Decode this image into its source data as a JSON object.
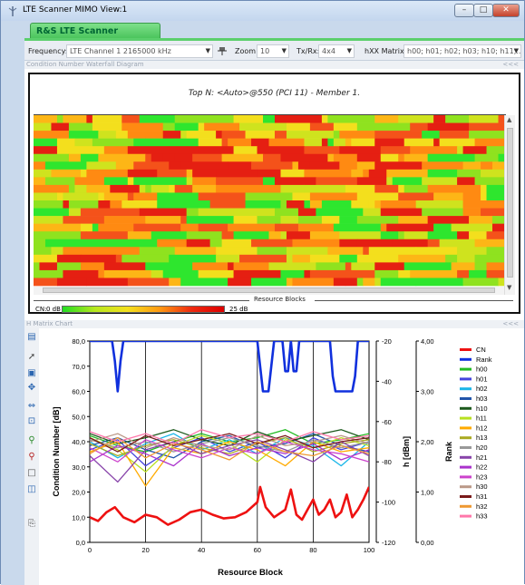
{
  "window": {
    "title": "LTE Scanner MIMO View:1"
  },
  "tab": {
    "label": "R&S LTE Scanner (TSME)..."
  },
  "toolbar": {
    "frequency_label": "Frequency:",
    "frequency_value": "LTE Channel 1 2165000 kHz",
    "zoom_label": "Zoom:",
    "zoom_value": "10",
    "txrx_label": "Tx/Rx:",
    "txrx_value": "4x4",
    "hxx_label": "hXX Matrix:",
    "hxx_value": "h00; h01; h02; h03; h10; h11;..."
  },
  "waterfall": {
    "header": "Condition Number Waterfall Diagram",
    "collapse": "<<<",
    "title": "Top N: <Auto>@550 (PCI 11) - Member 1.",
    "xaxis_label": "Resource Blocks",
    "cn_label": "CN:",
    "cn_min": "0 dB",
    "cn_max": "25 dB"
  },
  "hmatrix": {
    "header": "H Matrix Chart",
    "collapse": "<<<"
  },
  "colors": {
    "accent_green": "#4fcf63",
    "cn": "#ee1111",
    "rank": "#1030dd"
  },
  "chart_data": {
    "type": "line",
    "xlabel": "Resource Block",
    "ylabel_left": "Condition Number [dB]",
    "ylabel_h": "h [dBm]",
    "ylabel_rank": "Rank",
    "x_ticks": [
      "0",
      "20",
      "40",
      "60",
      "80",
      "100"
    ],
    "y_left_ticks": [
      "0,0",
      "10,0",
      "20,0",
      "30,0",
      "40,0",
      "50,0",
      "60,0",
      "70,0",
      "80,0"
    ],
    "y_h_ticks": [
      "-120",
      "-100",
      "-80",
      "-60",
      "-40",
      "-20"
    ],
    "y_rank_ticks": [
      "0,00",
      "1,00",
      "2,00",
      "3,00",
      "4,00"
    ],
    "xlim": [
      0,
      100
    ],
    "ylim_left": [
      0,
      80
    ],
    "ylim_h": [
      -120,
      -20
    ],
    "ylim_rank": [
      0,
      4
    ],
    "legend_position": "right",
    "series": [
      {
        "name": "CN",
        "color": "#ee1111",
        "axis": "cn",
        "x": [
          0,
          3,
          6,
          9,
          12,
          16,
          20,
          24,
          28,
          32,
          36,
          40,
          44,
          48,
          52,
          56,
          60,
          61,
          63,
          66,
          70,
          72,
          74,
          76,
          78,
          80,
          82,
          84,
          86,
          88,
          90,
          92,
          94,
          96,
          98,
          100
        ],
        "y": [
          10,
          8.5,
          12,
          14,
          10,
          8,
          11,
          10,
          7,
          9,
          12,
          13,
          11,
          9.5,
          10,
          12,
          16,
          22,
          14,
          10,
          13,
          21,
          11,
          9,
          13,
          17,
          11,
          13,
          17,
          10,
          12,
          19,
          10,
          13,
          17,
          22
        ]
      },
      {
        "name": "Rank",
        "color": "#1030dd",
        "axis": "rank",
        "x": [
          0,
          8,
          9,
          10,
          11,
          12,
          60,
          61,
          62,
          64,
          65,
          66,
          69,
          70,
          71,
          72,
          73,
          74,
          75,
          86,
          87,
          88,
          94,
          95,
          96,
          100
        ],
        "y": [
          4,
          4,
          3.6,
          3,
          3.6,
          4,
          4,
          3.5,
          3,
          3,
          3.5,
          4,
          4,
          3.4,
          3.4,
          4,
          3.4,
          3.4,
          4,
          4,
          3.3,
          3,
          3,
          3.3,
          4,
          4
        ]
      },
      {
        "name": "h00",
        "color": "#22bb22",
        "axis": "h",
        "x": [
          0,
          10,
          20,
          30,
          40,
          50,
          60,
          70,
          80,
          90,
          100
        ],
        "y": [
          -67,
          -72,
          -75,
          -70,
          -66,
          -70,
          -68,
          -64,
          -71,
          -69,
          -66
        ]
      },
      {
        "name": "h01",
        "color": "#4444dd",
        "axis": "h",
        "x": [
          0,
          10,
          20,
          30,
          40,
          50,
          60,
          70,
          80,
          90,
          100
        ],
        "y": [
          -74,
          -69,
          -82,
          -73,
          -68,
          -75,
          -70,
          -78,
          -68,
          -74,
          -70
        ]
      },
      {
        "name": "h02",
        "color": "#1ab6e8",
        "axis": "h",
        "x": [
          0,
          10,
          20,
          30,
          40,
          50,
          60,
          70,
          80,
          90,
          100
        ],
        "y": [
          -70,
          -78,
          -71,
          -66,
          -74,
          -69,
          -76,
          -68,
          -72,
          -82,
          -70
        ]
      },
      {
        "name": "h03",
        "color": "#2255aa",
        "axis": "h",
        "x": [
          0,
          10,
          20,
          30,
          40,
          50,
          60,
          70,
          80,
          90,
          100
        ],
        "y": [
          -72,
          -68,
          -74,
          -78,
          -70,
          -67,
          -73,
          -71,
          -66,
          -72,
          -75
        ]
      },
      {
        "name": "h10",
        "color": "#1d5a1d",
        "axis": "h",
        "x": [
          0,
          10,
          20,
          30,
          40,
          50,
          60,
          70,
          80,
          90,
          100
        ],
        "y": [
          -66,
          -71,
          -68,
          -64,
          -69,
          -72,
          -65,
          -70,
          -67,
          -64,
          -69
        ]
      },
      {
        "name": "h11",
        "color": "#b8e020",
        "axis": "h",
        "x": [
          0,
          10,
          20,
          30,
          40,
          50,
          60,
          70,
          80,
          90,
          100
        ],
        "y": [
          -68,
          -74,
          -85,
          -72,
          -67,
          -71,
          -80,
          -69,
          -73,
          -68,
          -72
        ]
      },
      {
        "name": "h12",
        "color": "#ffaa00",
        "axis": "h",
        "x": [
          0,
          10,
          20,
          30,
          40,
          50,
          60,
          70,
          80,
          90,
          100
        ],
        "y": [
          -75,
          -70,
          -92,
          -73,
          -76,
          -70,
          -74,
          -82,
          -70,
          -75,
          -73
        ]
      },
      {
        "name": "h13",
        "color": "#aaaa22",
        "axis": "h",
        "x": [
          0,
          10,
          20,
          30,
          40,
          50,
          60,
          70,
          80,
          90,
          100
        ],
        "y": [
          -71,
          -77,
          -72,
          -69,
          -73,
          -76,
          -71,
          -68,
          -75,
          -71,
          -69
        ]
      },
      {
        "name": "h20",
        "color": "#999999",
        "axis": "h",
        "x": [
          0,
          10,
          20,
          30,
          40,
          50,
          60,
          70,
          80,
          90,
          100
        ],
        "y": [
          -69,
          -73,
          -70,
          -75,
          -71,
          -68,
          -72,
          -75,
          -69,
          -73,
          -70
        ]
      },
      {
        "name": "h21",
        "color": "#8844aa",
        "axis": "h",
        "x": [
          0,
          10,
          20,
          30,
          40,
          50,
          60,
          70,
          80,
          90,
          100
        ],
        "y": [
          -77,
          -90,
          -74,
          -70,
          -76,
          -72,
          -69,
          -74,
          -80,
          -70,
          -77
        ]
      },
      {
        "name": "h22",
        "color": "#aa33cc",
        "axis": "h",
        "x": [
          0,
          10,
          20,
          30,
          40,
          50,
          60,
          70,
          80,
          90,
          100
        ],
        "y": [
          -80,
          -72,
          -76,
          -82,
          -71,
          -77,
          -73,
          -76,
          -71,
          -79,
          -74
        ]
      },
      {
        "name": "h23",
        "color": "#cc44cc",
        "axis": "h",
        "x": [
          0,
          10,
          20,
          30,
          40,
          50,
          60,
          70,
          80,
          90,
          100
        ],
        "y": [
          -73,
          -80,
          -69,
          -74,
          -78,
          -73,
          -76,
          -70,
          -74,
          -76,
          -80
        ]
      },
      {
        "name": "h30",
        "color": "#bb9988",
        "axis": "h",
        "x": [
          0,
          10,
          20,
          30,
          40,
          50,
          60,
          70,
          80,
          90,
          100
        ],
        "y": [
          -70,
          -66,
          -73,
          -68,
          -72,
          -74,
          -67,
          -72,
          -70,
          -67,
          -71
        ]
      },
      {
        "name": "h31",
        "color": "#7a1a1a",
        "axis": "h",
        "x": [
          0,
          10,
          20,
          30,
          40,
          50,
          60,
          70,
          80,
          90,
          100
        ],
        "y": [
          -68,
          -75,
          -67,
          -72,
          -69,
          -66,
          -71,
          -67,
          -73,
          -70,
          -68
        ]
      },
      {
        "name": "h32",
        "color": "#ee9933",
        "axis": "h",
        "x": [
          0,
          10,
          20,
          30,
          40,
          50,
          60,
          70,
          80,
          90,
          100
        ],
        "y": [
          -76,
          -68,
          -78,
          -71,
          -74,
          -79,
          -70,
          -75,
          -77,
          -72,
          -76
        ]
      },
      {
        "name": "h33",
        "color": "#ff77aa",
        "axis": "h",
        "x": [
          0,
          10,
          20,
          30,
          40,
          50,
          60,
          70,
          80,
          90,
          100
        ],
        "y": [
          -65,
          -70,
          -66,
          -71,
          -64,
          -68,
          -66,
          -70,
          -65,
          -69,
          -67
        ]
      }
    ]
  }
}
